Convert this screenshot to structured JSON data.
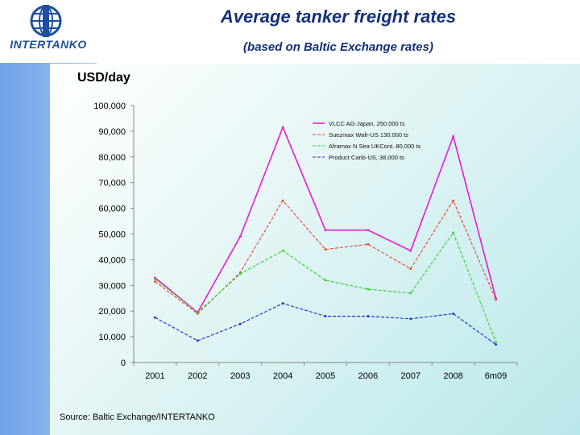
{
  "header": {
    "title": "Average tanker freight rates",
    "subtitle": "(based on Baltic Exchange rates)",
    "logo_text": "INTERTANKO"
  },
  "source": "Source: Baltic Exchange/INTERTANKO",
  "chart_data": {
    "type": "line",
    "title": "",
    "ylabel": "USD/day",
    "xlabel": "",
    "categories": [
      "2001",
      "2002",
      "2003",
      "2004",
      "2005",
      "2006",
      "2007",
      "2008",
      "6m09"
    ],
    "ylim": [
      0,
      100000
    ],
    "yticks": [
      0,
      10000,
      20000,
      30000,
      40000,
      50000,
      60000,
      70000,
      80000,
      90000,
      100000
    ],
    "ytick_labels": [
      "0",
      "10,000",
      "20,000",
      "30,000",
      "40,000",
      "50,000",
      "60,000",
      "70,000",
      "80,000",
      "90,000",
      "100,000"
    ],
    "grid": false,
    "legend_position": "top-right",
    "series": [
      {
        "name": "VLCC AG-Japan, 250.000 ts",
        "color": "#e81ad6",
        "dash": "solid",
        "values": [
          33000,
          19500,
          49000,
          91500,
          51500,
          51500,
          43500,
          88000,
          25000
        ]
      },
      {
        "name": "Suezmax Wafr-US 130.000 ts",
        "color": "#e8452a",
        "dash": "dashed",
        "values": [
          31500,
          19000,
          35000,
          63000,
          44000,
          46000,
          36500,
          63000,
          24500
        ]
      },
      {
        "name": "Aframax N Sea UKCont. 80,000 ts",
        "color": "#2ed12e",
        "dash": "dashed",
        "values": [
          32500,
          19500,
          34500,
          43500,
          32000,
          28500,
          27000,
          50500,
          8000
        ]
      },
      {
        "name": "Product Carib-US, 38,000 ts",
        "color": "#2222cc",
        "dash": "dashed",
        "values": [
          17500,
          8500,
          15000,
          23000,
          18000,
          18000,
          17000,
          19000,
          7000
        ]
      }
    ]
  }
}
